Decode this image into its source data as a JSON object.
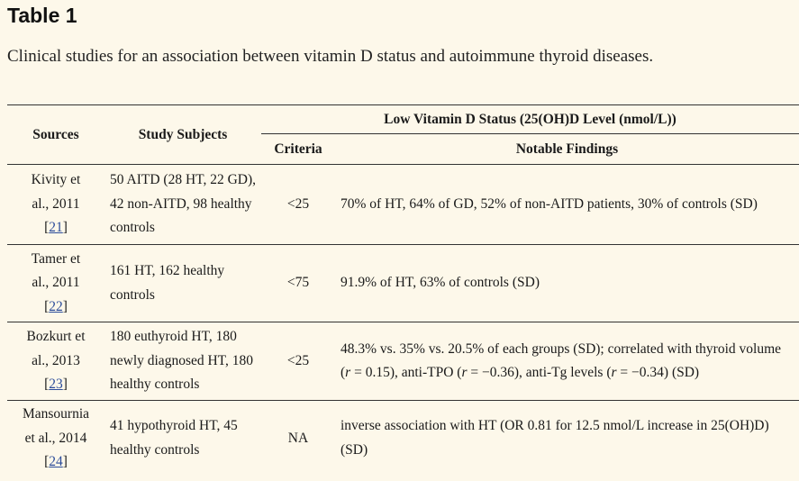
{
  "title": "Table 1",
  "caption": "Clinical studies for an association between vitamin D status and autoimmune thyroid diseases.",
  "headers": {
    "sources": "Sources",
    "subjects": "Study Subjects",
    "group": "Low Vitamin D Status (25(OH)D Level (nmol/L))",
    "criteria": "Criteria",
    "findings": "Notable Findings"
  },
  "rows": [
    {
      "source_l1": "Kivity et",
      "source_l2": "al., 2011",
      "ref": "21",
      "subjects": "50 AITD (28 HT, 22 GD), 42 non-AITD, 98 healthy controls",
      "criteria": "<25",
      "findings": "70% of HT, 64% of GD, 52% of non-AITD patients, 30% of controls (SD)"
    },
    {
      "source_l1": "Tamer et",
      "source_l2": "al., 2011",
      "ref": "22",
      "subjects": "161 HT, 162 healthy controls",
      "criteria": "<75",
      "findings": "91.9% of HT, 63% of controls (SD)"
    },
    {
      "source_l1": "Bozkurt et",
      "source_l2": "al., 2013",
      "ref": "23",
      "subjects": "180 euthyroid HT, 180 newly diagnosed HT, 180 healthy controls",
      "criteria": "<25",
      "findings_a": "48.3% vs. 35% vs. 20.5% of each groups (SD); correlated with thyroid volume (",
      "findings_r1": "r",
      "findings_b": " = 0.15), anti-TPO (",
      "findings_r2": "r",
      "findings_c": " = −0.36), anti-Tg levels (",
      "findings_r3": "r",
      "findings_d": " = −0.34) (SD)"
    },
    {
      "source_l1": "Mansournia",
      "source_l2": "et al., 2014",
      "ref": "24",
      "subjects": "41 hypothyroid HT, 45 healthy controls",
      "criteria": "NA",
      "findings": "inverse association with HT (OR 0.81 for 12.5 nmol/L increase in 25(OH)D) (SD)"
    }
  ]
}
